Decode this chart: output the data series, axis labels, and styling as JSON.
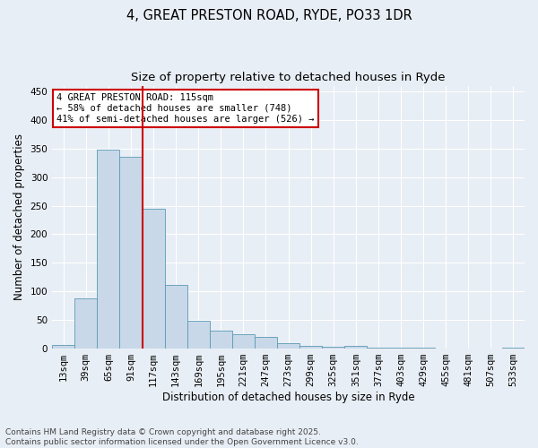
{
  "title_line1": "4, GREAT PRESTON ROAD, RYDE, PO33 1DR",
  "title_line2": "Size of property relative to detached houses in Ryde",
  "xlabel": "Distribution of detached houses by size in Ryde",
  "ylabel": "Number of detached properties",
  "categories": [
    "13sqm",
    "39sqm",
    "65sqm",
    "91sqm",
    "117sqm",
    "143sqm",
    "169sqm",
    "195sqm",
    "221sqm",
    "247sqm",
    "273sqm",
    "299sqm",
    "325sqm",
    "351sqm",
    "377sqm",
    "403sqm",
    "429sqm",
    "455sqm",
    "481sqm",
    "507sqm",
    "533sqm"
  ],
  "values": [
    6,
    88,
    348,
    335,
    245,
    112,
    48,
    32,
    25,
    20,
    10,
    5,
    3,
    5,
    1,
    1,
    1,
    0,
    0,
    0,
    1
  ],
  "bar_color": "#c8d8e8",
  "bar_edge_color": "#5b9ab5",
  "vline_color": "#cc0000",
  "annotation_box_text": "4 GREAT PRESTON ROAD: 115sqm\n← 58% of detached houses are smaller (748)\n41% of semi-detached houses are larger (526) →",
  "annotation_box_color": "#cc0000",
  "ylim": [
    0,
    460
  ],
  "yticks": [
    0,
    50,
    100,
    150,
    200,
    250,
    300,
    350,
    400,
    450
  ],
  "footnote": "Contains HM Land Registry data © Crown copyright and database right 2025.\nContains public sector information licensed under the Open Government Licence v3.0.",
  "background_color": "#e8eef5",
  "plot_background_color": "#e8eef5",
  "grid_color": "#ffffff",
  "title_fontsize": 10.5,
  "subtitle_fontsize": 9.5,
  "axis_label_fontsize": 8.5,
  "tick_fontsize": 7.5,
  "annotation_fontsize": 7.5,
  "footnote_fontsize": 6.5
}
